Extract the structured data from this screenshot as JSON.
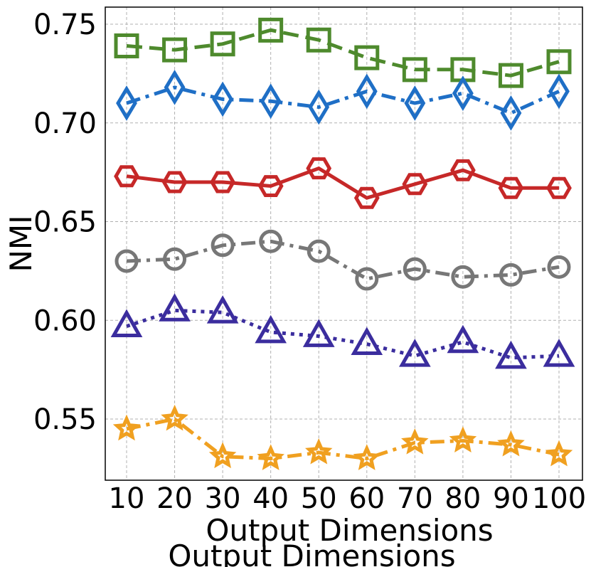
{
  "chart_data": {
    "type": "line",
    "title": "",
    "xlabel": "Output Dimensions",
    "ylabel": "NMI",
    "x": [
      10,
      20,
      30,
      40,
      50,
      60,
      70,
      80,
      90,
      100
    ],
    "x_tick_labels": [
      "10",
      "20",
      "30",
      "40",
      "50",
      "60",
      "70",
      "80",
      "90",
      "100"
    ],
    "y_ticks": [
      0.55,
      0.6,
      0.65,
      0.7,
      0.75
    ],
    "y_tick_labels": [
      "0.55",
      "0.60",
      "0.65",
      "0.70",
      "0.75"
    ],
    "ylim": [
      0.52,
      0.76
    ],
    "grid": true,
    "legend": "none",
    "series": [
      {
        "name": "green-squares",
        "color": "#4e8a2d",
        "marker": "square",
        "linestyle": "dashed",
        "values": [
          0.739,
          0.737,
          0.74,
          0.747,
          0.742,
          0.733,
          0.727,
          0.727,
          0.724,
          0.731
        ]
      },
      {
        "name": "blue-diamonds",
        "color": "#1f6fc6",
        "marker": "diamond",
        "linestyle": "dashdot",
        "values": [
          0.71,
          0.718,
          0.712,
          0.711,
          0.708,
          0.716,
          0.71,
          0.715,
          0.705,
          0.716
        ]
      },
      {
        "name": "red-hexagons",
        "color": "#c62828",
        "marker": "hexagon",
        "linestyle": "solid",
        "values": [
          0.673,
          0.67,
          0.67,
          0.668,
          0.677,
          0.662,
          0.669,
          0.676,
          0.667,
          0.667
        ]
      },
      {
        "name": "gray-circles",
        "color": "#777777",
        "marker": "circle",
        "linestyle": "dashdot",
        "values": [
          0.63,
          0.631,
          0.638,
          0.64,
          0.635,
          0.621,
          0.626,
          0.622,
          0.623,
          0.627
        ]
      },
      {
        "name": "purple-triangles",
        "color": "#3b2d9e",
        "marker": "triangle",
        "linestyle": "dotted",
        "values": [
          0.597,
          0.605,
          0.604,
          0.594,
          0.592,
          0.588,
          0.582,
          0.589,
          0.581,
          0.582
        ]
      },
      {
        "name": "orange-stars",
        "color": "#f0a020",
        "marker": "star",
        "linestyle": "dashdot",
        "values": [
          0.545,
          0.55,
          0.531,
          0.53,
          0.533,
          0.53,
          0.538,
          0.539,
          0.537,
          0.532
        ]
      }
    ]
  }
}
